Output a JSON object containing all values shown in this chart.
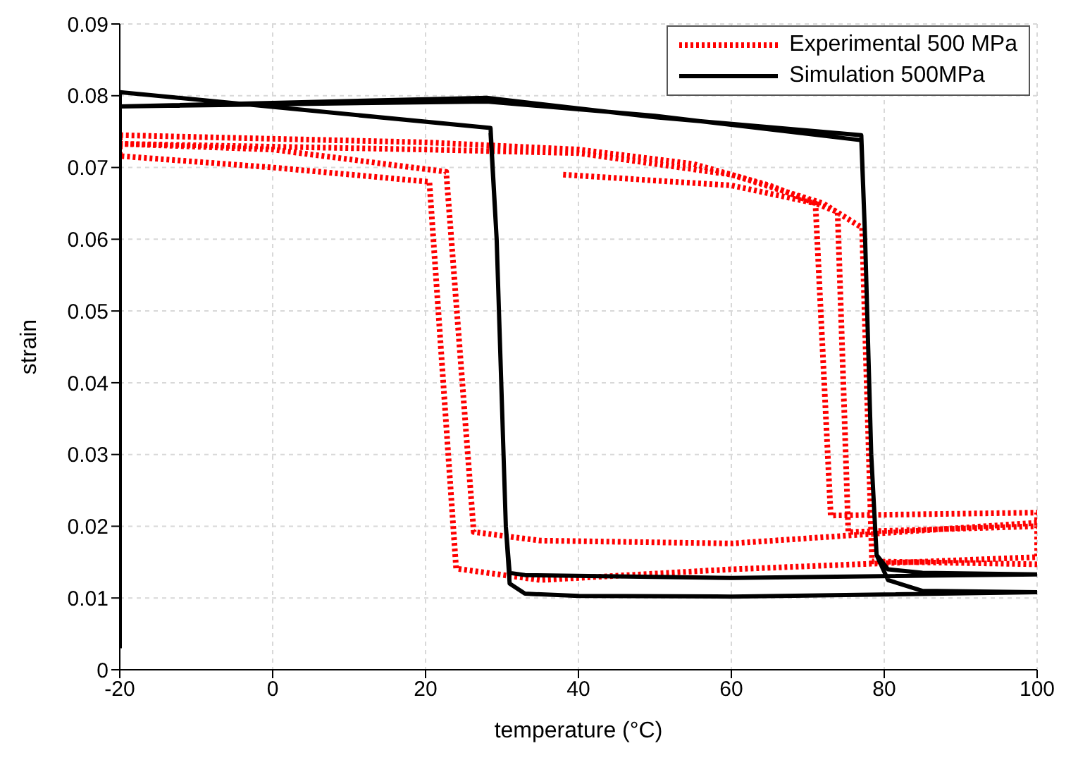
{
  "chart_data": {
    "type": "line",
    "xlabel": "temperature (°C)",
    "ylabel": "strain",
    "xlim": [
      -20,
      100
    ],
    "xticks": [
      -20,
      0,
      20,
      40,
      60,
      80,
      100
    ],
    "ylim": [
      0,
      0.09
    ],
    "yticks": [
      0,
      0.01,
      0.02,
      0.03,
      0.04,
      0.05,
      0.06,
      0.07,
      0.08,
      0.09
    ],
    "grid": true,
    "legend": "top right",
    "marker": "none",
    "series": [
      {
        "name": "Experimental 500 MPa",
        "color": "#ff0000",
        "line_style": "dotted",
        "x": [
          38,
          60,
          71,
          73,
          100,
          100,
          60,
          35,
          26.3,
          22.7,
          0,
          -20,
          -20,
          20,
          40,
          55,
          65,
          73.9,
          75.3,
          100,
          100,
          60,
          35,
          24,
          20.5,
          0,
          -20,
          -20,
          20,
          40,
          60,
          72,
          77.1,
          78.4,
          100
        ],
        "values": [
          0.069,
          0.0675,
          0.065,
          0.0215,
          0.0219,
          0.0205,
          0.0176,
          0.018,
          0.0192,
          0.0694,
          0.0725,
          0.0733,
          0.0745,
          0.0735,
          0.0725,
          0.0705,
          0.0675,
          0.0638,
          0.0192,
          0.02,
          0.0157,
          0.014,
          0.0125,
          0.0141,
          0.068,
          0.07,
          0.0716,
          0.0733,
          0.0725,
          0.072,
          0.069,
          0.065,
          0.0616,
          0.0151,
          0.0147
        ]
      },
      {
        "name": "Simulation 500MPa",
        "color": "#000000",
        "line_style": "solid",
        "x": [
          -20,
          -20,
          0,
          28,
          50,
          77,
          77.5,
          78.3,
          79,
          80.5,
          85,
          100,
          60,
          40,
          33,
          31,
          30.5,
          29.3,
          28.5,
          -20,
          -20,
          0,
          28,
          50,
          77,
          77.5,
          78.3,
          79,
          80.5,
          85,
          100,
          60,
          33,
          31,
          30.5,
          29.3,
          28.5
        ],
        "values": [
          0.003,
          0.0785,
          0.079,
          0.0797,
          0.077,
          0.0745,
          0.06,
          0.03,
          0.016,
          0.0125,
          0.011,
          0.0108,
          0.0102,
          0.0103,
          0.0106,
          0.012,
          0.02,
          0.06,
          0.0755,
          0.0805,
          0.0785,
          0.0788,
          0.0792,
          0.0772,
          0.0738,
          0.06,
          0.03,
          0.016,
          0.014,
          0.0135,
          0.0133,
          0.0128,
          0.0132,
          0.0135,
          0.02,
          0.06,
          0.0748
        ]
      }
    ]
  }
}
